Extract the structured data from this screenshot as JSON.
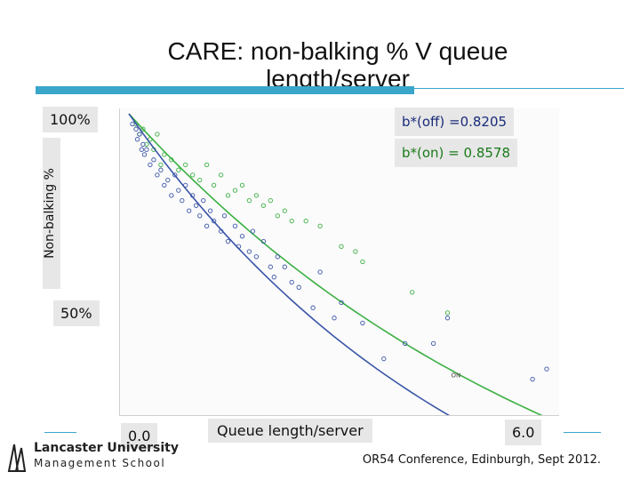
{
  "slide": {
    "title": "CARE:  non-balking % V queue length/server",
    "footer": "OR54 Conference, Edinburgh, Sept 2012.",
    "logo": {
      "line1": "Lancaster University",
      "line2": "Management School"
    }
  },
  "chart_data": {
    "type": "scatter",
    "xlabel": "Queue length/server",
    "ylabel": "Non-balking %",
    "x_tick_labels": [
      "0.0",
      "6.0"
    ],
    "y_tick_labels": [
      "100%",
      "50%"
    ],
    "xlim": [
      0,
      6
    ],
    "ylim": [
      0.42,
      1.0
    ],
    "annotations": {
      "b_off": "b*(off) =0.8205",
      "b_on": "b*(on) = 0.8578"
    },
    "series": [
      {
        "name": "ON",
        "color": "#3cb043",
        "b": 0.8578,
        "points": [
          [
            0.1,
            0.98
          ],
          [
            0.15,
            0.96
          ],
          [
            0.2,
            0.97
          ],
          [
            0.25,
            0.94
          ],
          [
            0.3,
            0.95
          ],
          [
            0.35,
            0.93
          ],
          [
            0.4,
            0.96
          ],
          [
            0.45,
            0.9
          ],
          [
            0.5,
            0.92
          ],
          [
            0.6,
            0.91
          ],
          [
            0.7,
            0.89
          ],
          [
            0.8,
            0.9
          ],
          [
            0.9,
            0.88
          ],
          [
            1.0,
            0.87
          ],
          [
            1.1,
            0.9
          ],
          [
            1.2,
            0.86
          ],
          [
            1.3,
            0.88
          ],
          [
            1.4,
            0.84
          ],
          [
            1.5,
            0.85
          ],
          [
            1.6,
            0.86
          ],
          [
            1.7,
            0.83
          ],
          [
            1.8,
            0.84
          ],
          [
            1.9,
            0.82
          ],
          [
            2.0,
            0.83
          ],
          [
            2.1,
            0.8
          ],
          [
            2.2,
            0.81
          ],
          [
            2.3,
            0.79
          ],
          [
            2.5,
            0.79
          ],
          [
            2.7,
            0.78
          ],
          [
            3.0,
            0.74
          ],
          [
            3.2,
            0.73
          ],
          [
            3.3,
            0.71
          ],
          [
            4.0,
            0.65
          ],
          [
            4.5,
            0.61
          ]
        ]
      },
      {
        "name": "OFF",
        "color": "#3a55a8",
        "b": 0.8205,
        "points": [
          [
            0.05,
            0.98
          ],
          [
            0.1,
            0.97
          ],
          [
            0.12,
            0.95
          ],
          [
            0.15,
            0.96
          ],
          [
            0.18,
            0.93
          ],
          [
            0.2,
            0.94
          ],
          [
            0.22,
            0.92
          ],
          [
            0.25,
            0.93
          ],
          [
            0.3,
            0.9
          ],
          [
            0.35,
            0.91
          ],
          [
            0.4,
            0.88
          ],
          [
            0.45,
            0.89
          ],
          [
            0.5,
            0.86
          ],
          [
            0.55,
            0.87
          ],
          [
            0.6,
            0.84
          ],
          [
            0.65,
            0.88
          ],
          [
            0.7,
            0.85
          ],
          [
            0.75,
            0.83
          ],
          [
            0.8,
            0.86
          ],
          [
            0.85,
            0.81
          ],
          [
            0.9,
            0.84
          ],
          [
            0.95,
            0.82
          ],
          [
            1.0,
            0.8
          ],
          [
            1.05,
            0.83
          ],
          [
            1.1,
            0.78
          ],
          [
            1.15,
            0.81
          ],
          [
            1.2,
            0.79
          ],
          [
            1.3,
            0.77
          ],
          [
            1.35,
            0.8
          ],
          [
            1.4,
            0.75
          ],
          [
            1.5,
            0.78
          ],
          [
            1.55,
            0.74
          ],
          [
            1.6,
            0.76
          ],
          [
            1.7,
            0.73
          ],
          [
            1.75,
            0.77
          ],
          [
            1.8,
            0.72
          ],
          [
            1.9,
            0.75
          ],
          [
            2.0,
            0.7
          ],
          [
            2.05,
            0.68
          ],
          [
            2.1,
            0.72
          ],
          [
            2.2,
            0.7
          ],
          [
            2.3,
            0.67
          ],
          [
            2.4,
            0.66
          ],
          [
            2.6,
            0.62
          ],
          [
            2.7,
            0.69
          ],
          [
            2.9,
            0.6
          ],
          [
            3.0,
            0.63
          ],
          [
            3.3,
            0.59
          ],
          [
            3.6,
            0.52
          ],
          [
            3.9,
            0.55
          ],
          [
            4.3,
            0.55
          ],
          [
            4.5,
            0.6
          ],
          [
            5.7,
            0.48
          ],
          [
            5.9,
            0.5
          ]
        ]
      }
    ]
  }
}
